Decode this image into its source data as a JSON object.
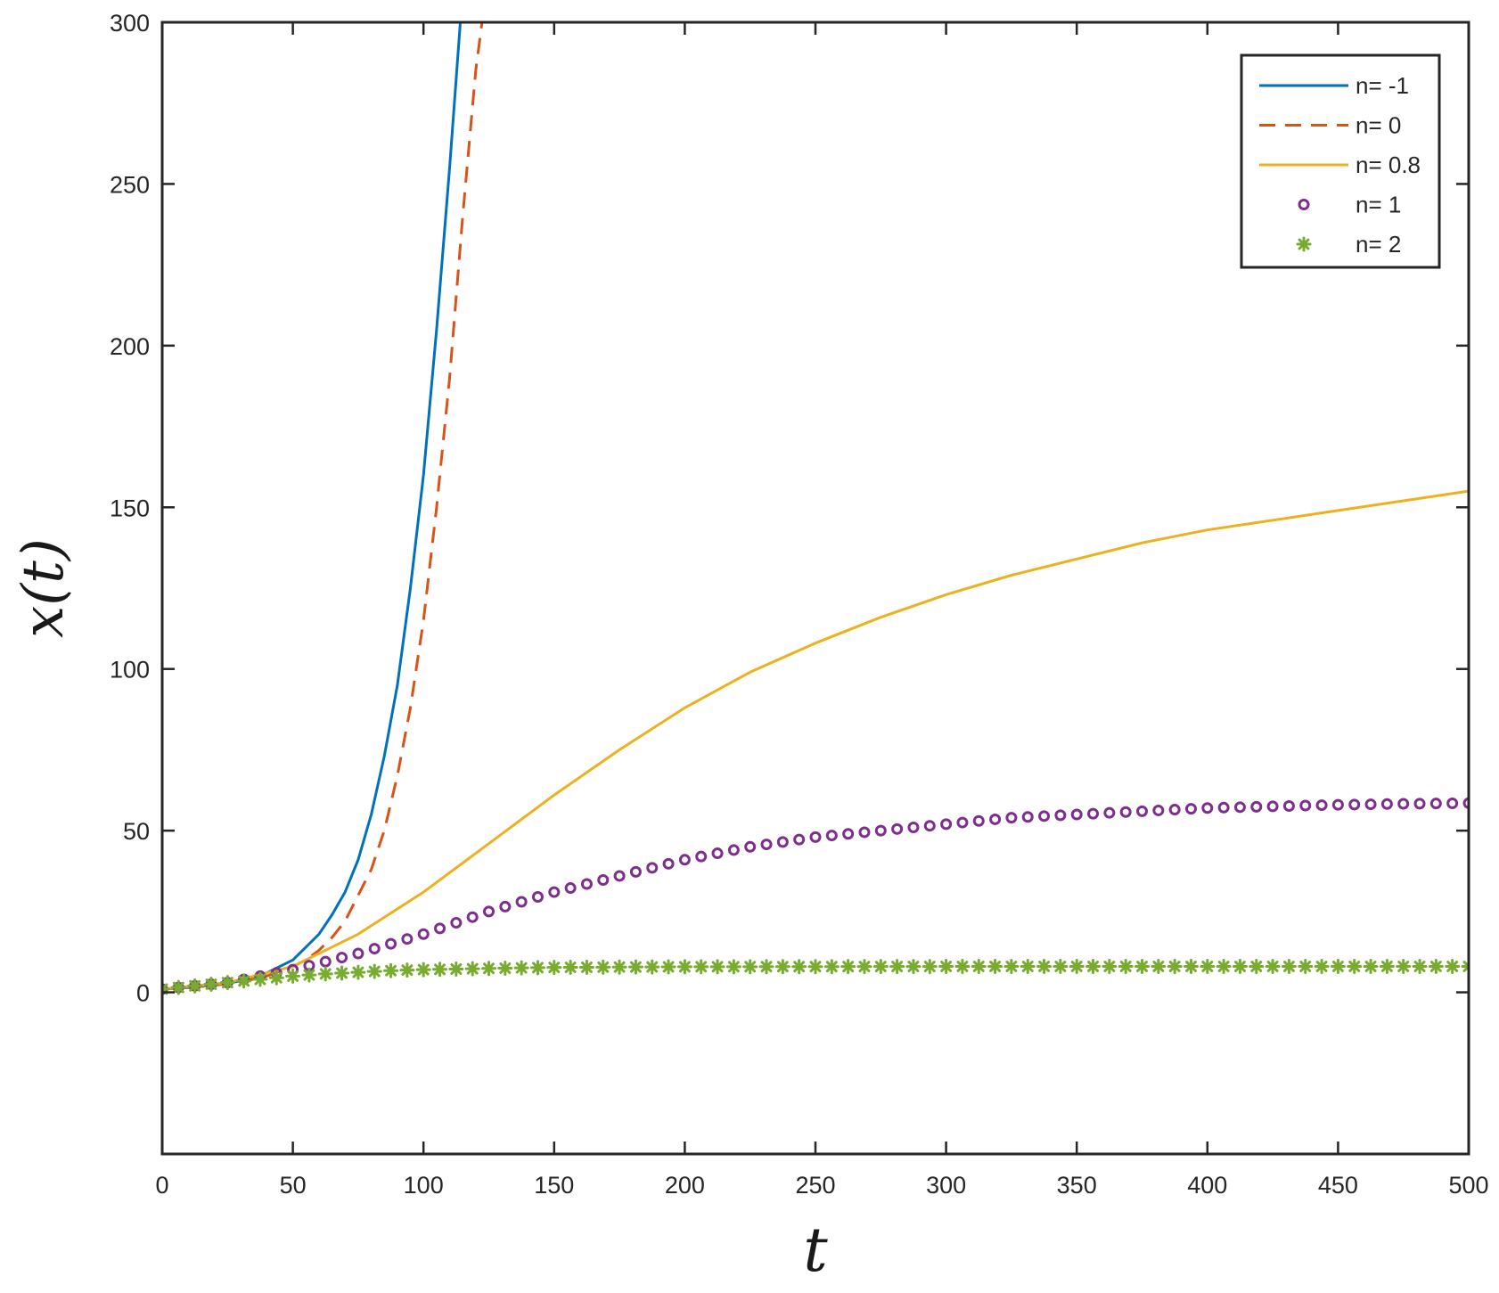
{
  "chart_data": {
    "type": "line",
    "title": "",
    "xlabel": "t",
    "ylabel": "x(t)",
    "xlim": [
      0,
      500
    ],
    "ylim": [
      -50,
      300
    ],
    "xticks": [
      0,
      50,
      100,
      150,
      200,
      250,
      300,
      350,
      400,
      450,
      500
    ],
    "yticks": [
      0,
      50,
      100,
      150,
      200,
      250,
      300
    ],
    "grid": false,
    "legend_position": "top-right",
    "series": [
      {
        "name": "n= -1",
        "style": "solid",
        "color": "#0072BD",
        "x": [
          0,
          10,
          20,
          30,
          40,
          50,
          55,
          60,
          65,
          70,
          75,
          80,
          85,
          90,
          95,
          100,
          105,
          110,
          115
        ],
        "y": [
          1,
          1.5,
          2.3,
          3.5,
          6,
          10,
          14,
          18,
          24,
          31,
          41,
          55,
          73,
          95,
          125,
          160,
          205,
          255,
          310
        ]
      },
      {
        "name": "n= 0",
        "style": "dashed",
        "color": "#D95319",
        "x": [
          0,
          10,
          20,
          30,
          40,
          50,
          55,
          60,
          65,
          70,
          75,
          80,
          85,
          90,
          95,
          100,
          105,
          110,
          115,
          120,
          124
        ],
        "y": [
          1,
          1.4,
          2.2,
          3.2,
          5,
          8,
          10,
          13,
          17,
          22,
          30,
          38,
          50,
          67,
          88,
          115,
          150,
          190,
          240,
          285,
          310
        ]
      },
      {
        "name": "n= 0.8",
        "style": "solid",
        "color": "#EDB120",
        "x": [
          0,
          25,
          50,
          75,
          100,
          125,
          150,
          175,
          200,
          225,
          250,
          275,
          300,
          325,
          350,
          375,
          400,
          425,
          450,
          475,
          500
        ],
        "y": [
          1,
          3,
          8,
          18,
          31,
          46,
          61,
          75,
          88,
          99,
          108,
          116,
          123,
          129,
          134,
          139,
          143,
          146,
          149,
          152,
          155
        ]
      },
      {
        "name": "n= 1",
        "style": "circle-markers",
        "color": "#7E2F8E",
        "x": [
          0,
          25,
          50,
          75,
          100,
          125,
          150,
          175,
          200,
          225,
          250,
          275,
          300,
          325,
          350,
          375,
          400,
          425,
          450,
          475,
          500
        ],
        "y": [
          1,
          3,
          7,
          12,
          18,
          25,
          31,
          36,
          41,
          45,
          48,
          50,
          52,
          54,
          55,
          56,
          57,
          57.5,
          58,
          58.3,
          58.5
        ]
      },
      {
        "name": "n= 2",
        "style": "star-markers",
        "color": "#77AC30",
        "x": [
          0,
          10,
          20,
          30,
          40,
          50,
          60,
          70,
          80,
          90,
          100,
          125,
          150,
          200,
          300,
          400,
          500
        ],
        "y": [
          1,
          1.8,
          2.6,
          3.4,
          4.2,
          5,
          5.6,
          6,
          6.4,
          6.8,
          7,
          7.4,
          7.7,
          7.9,
          8,
          8,
          8
        ]
      }
    ]
  }
}
